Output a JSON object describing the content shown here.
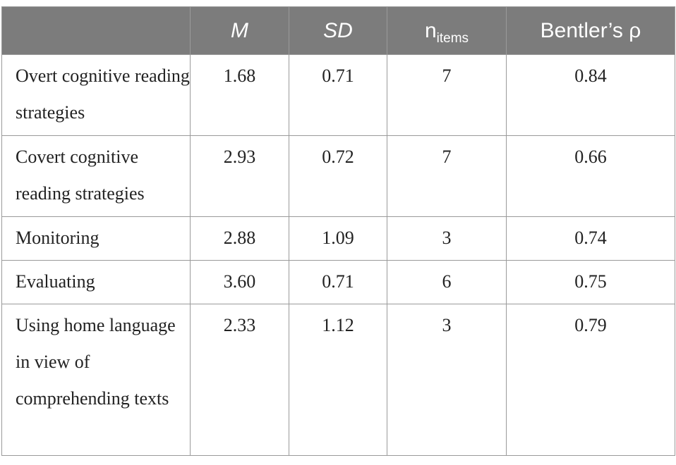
{
  "table": {
    "headers": {
      "label": "",
      "m": "M",
      "sd": "SD",
      "n_main": "n",
      "n_sub": "items",
      "rho": "Bentler’s ρ"
    },
    "rows": [
      {
        "label": "Overt cognitive reading strategies",
        "m": "1.68",
        "sd": "0.71",
        "n": "7",
        "rho": "0.84"
      },
      {
        "label": "Covert cognitive reading strategies",
        "m": "2.93",
        "sd": "0.72",
        "n": "7",
        "rho": "0.66"
      },
      {
        "label": "Monitoring",
        "m": "2.88",
        "sd": "1.09",
        "n": "3",
        "rho": "0.74"
      },
      {
        "label": "Evaluating",
        "m": "3.60",
        "sd": "0.71",
        "n": "6",
        "rho": "0.75"
      },
      {
        "label": "Using home language in view of comprehending texts",
        "m": "2.33",
        "sd": "1.12",
        "n": "3",
        "rho": "0.79"
      }
    ],
    "colors": {
      "header_bg": "#7c7c7c",
      "header_text": "#ffffff",
      "border": "#9a9a9a",
      "body_text": "#222222"
    }
  }
}
